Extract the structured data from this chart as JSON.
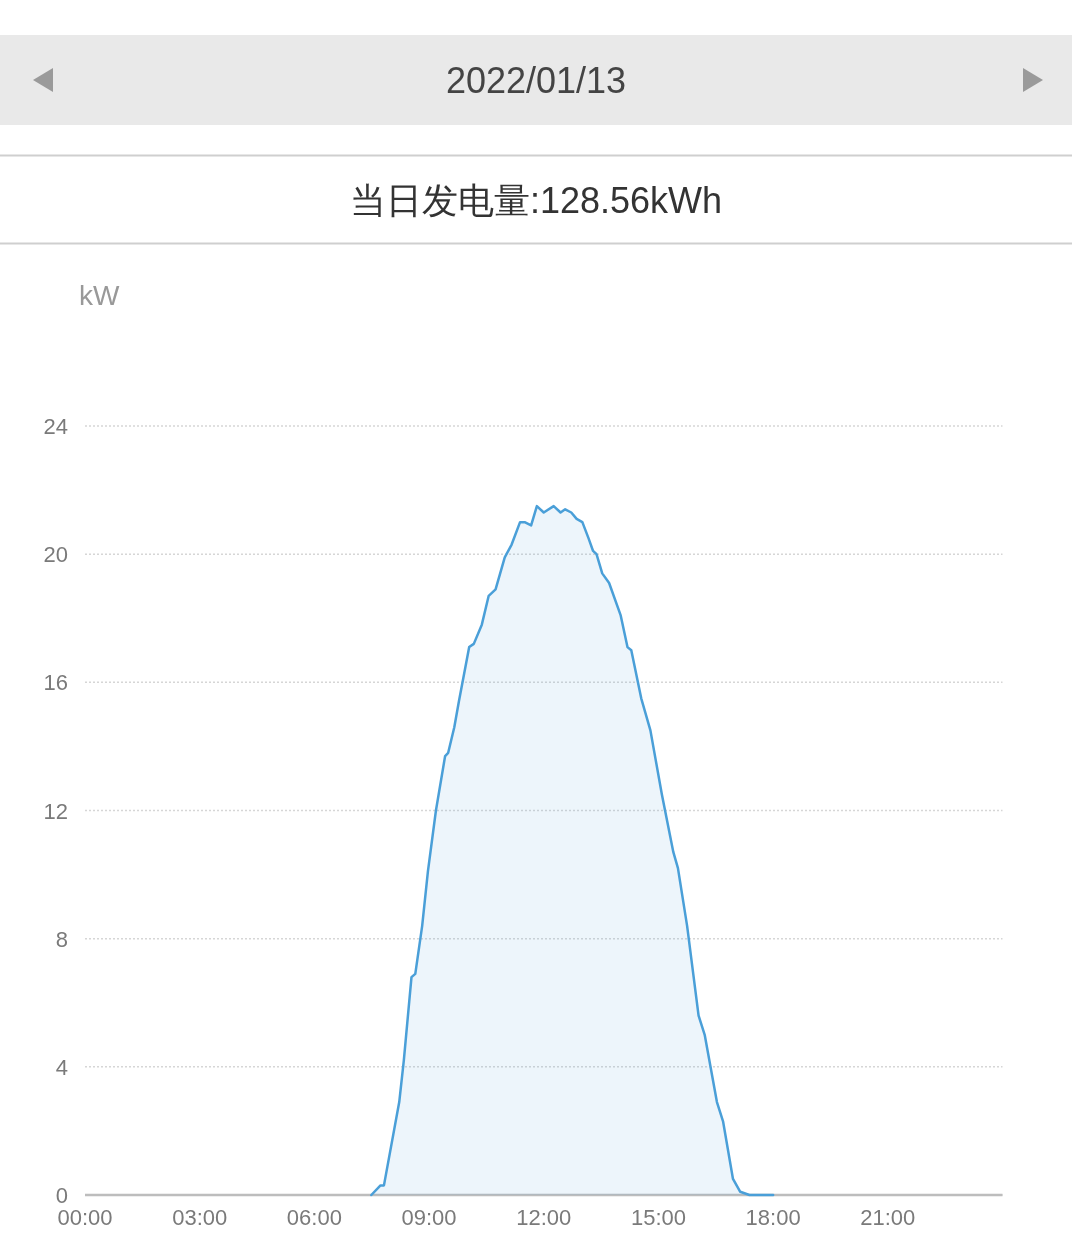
{
  "chart_data": {
    "type": "area",
    "title": "2022/01/13",
    "subtitle": "当日发电量:128.56kWh",
    "ylabel": "kW",
    "x": [
      7.49,
      7.73,
      7.82,
      8.22,
      8.34,
      8.54,
      8.64,
      8.82,
      8.97,
      9.18,
      9.42,
      9.5,
      9.66,
      9.78,
      10.05,
      10.17,
      10.38,
      10.56,
      10.74,
      10.98,
      11.16,
      11.38,
      11.5,
      11.67,
      11.82,
      12.0,
      12.26,
      12.44,
      12.56,
      12.72,
      12.86,
      13.01,
      13.17,
      13.29,
      13.38,
      13.53,
      13.71,
      14.01,
      14.19,
      14.29,
      14.55,
      14.79,
      15.09,
      15.39,
      15.51,
      15.75,
      16.05,
      16.21,
      16.53,
      16.69,
      16.95,
      17.14,
      17.38,
      18.0
    ],
    "series": [
      {
        "color": "#4a9fd8",
        "values": [
          0,
          0.3,
          0.3,
          2.9,
          4.2,
          6.8,
          6.9,
          8.4,
          10.1,
          12.0,
          13.7,
          13.8,
          14.6,
          15.4,
          17.1,
          17.2,
          17.8,
          18.7,
          18.9,
          19.9,
          20.3,
          21.0,
          21.0,
          20.9,
          21.5,
          21.3,
          21.5,
          21.3,
          21.4,
          21.3,
          21.1,
          21.0,
          20.5,
          20.1,
          20.0,
          19.4,
          19.1,
          18.1,
          17.1,
          17.0,
          15.5,
          14.5,
          12.5,
          10.7,
          10.2,
          8.4,
          5.6,
          5.0,
          2.9,
          2.3,
          0.5,
          0.1,
          0.0,
          0
        ]
      }
    ],
    "xlim": [
      0,
      24
    ],
    "xticks": [
      {
        "value": 0,
        "label": "00:00"
      },
      {
        "value": 3,
        "label": "03:00"
      },
      {
        "value": 6,
        "label": "06:00"
      },
      {
        "value": 9,
        "label": "09:00"
      },
      {
        "value": 12,
        "label": "12:00"
      },
      {
        "value": 15,
        "label": "15:00"
      },
      {
        "value": 18,
        "label": "18:00"
      },
      {
        "value": 21,
        "label": "21:00"
      }
    ],
    "ylim": [
      0,
      24
    ],
    "yticks": [
      0,
      4,
      8,
      12,
      16,
      20,
      24
    ],
    "grid": "y"
  }
}
